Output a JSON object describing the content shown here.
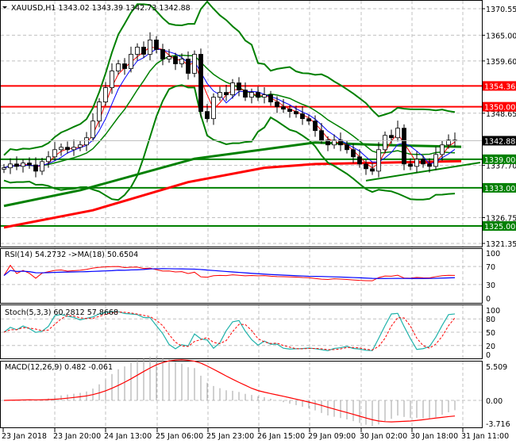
{
  "header": {
    "symbol": "XAUUSD,H1",
    "open": "1343.02",
    "high": "1343.39",
    "low": "1342.73",
    "close": "1342.88"
  },
  "indicators": {
    "rsi": {
      "label": "RSI(14) 54.2732  ->MA(18) 50.6504",
      "ticks": [
        "100",
        "70",
        "30",
        "0"
      ]
    },
    "stoch": {
      "label": "Stoch(5,3,3) 60.2812 57.8668",
      "ticks": [
        "100",
        "80",
        "50",
        "20",
        "0"
      ]
    },
    "macd": {
      "label": "MACD(12,26,9) 0.482 -0.061",
      "ticks": [
        "5.509",
        "0.00",
        "-3.716"
      ]
    }
  },
  "colors": {
    "bull": "#000000",
    "bear": "#000000",
    "up_body": "#ffffff",
    "down_body": "#000000",
    "red": "#ff0000",
    "green": "#008000",
    "blue": "#0000ff",
    "teal": "#20b2aa",
    "grid": "#c0c0c0"
  },
  "chart_data": {
    "type": "candlestick",
    "title": "XAUUSD,H1",
    "ylim": [
      1321.35,
      1370.55
    ],
    "price_ticks": [
      "1370.55",
      "1365.00",
      "1359.60",
      "1348.65",
      "1337.70",
      "1326.75",
      "1321.35"
    ],
    "levels": [
      {
        "price": 1354.36,
        "label": "1354.36",
        "color": "#ff0000"
      },
      {
        "price": 1350.0,
        "label": "1350.00",
        "color": "#ff0000"
      },
      {
        "price": 1339.0,
        "label": "1339.00",
        "color": "#008000"
      },
      {
        "price": 1333.0,
        "label": "1333.00",
        "color": "#008000"
      },
      {
        "price": 1325.0,
        "label": "1325.00",
        "color": "#008000"
      }
    ],
    "current_price": {
      "price": 1342.88,
      "label": "1342.88"
    },
    "x_labels": [
      "23 Jan 2018",
      "23 Jan 20:00",
      "24 Jan 13:00",
      "25 Jan 06:00",
      "25 Jan 23:00",
      "26 Jan 15:00",
      "29 Jan 09:00",
      "30 Jan 02:00",
      "30 Jan 18:00",
      "31 Jan 11:00"
    ],
    "closes": [
      1337.2,
      1338,
      1337.5,
      1338.2,
      1337.8,
      1336.5,
      1338.5,
      1339.5,
      1341,
      1341.5,
      1341,
      1341.5,
      1342,
      1343.5,
      1347,
      1351,
      1354,
      1357.5,
      1359,
      1358,
      1361,
      1362.5,
      1361,
      1364,
      1362,
      1360,
      1360.5,
      1359,
      1360,
      1357,
      1361,
      1349,
      1347.5,
      1352,
      1353,
      1352.5,
      1355,
      1353.5,
      1352,
      1353,
      1352,
      1352.5,
      1351,
      1350,
      1349.5,
      1349,
      1348.5,
      1347.5,
      1347,
      1345,
      1343,
      1342,
      1343,
      1342,
      1341,
      1339.5,
      1338,
      1337,
      1336.5,
      1341,
      1344,
      1343.5,
      1345.5,
      1338,
      1337.5,
      1339,
      1338,
      1337.5,
      1340,
      1342,
      1343,
      1342.88
    ],
    "ma_slow": {
      "index": [
        0,
        14,
        29,
        41,
        49,
        72
      ],
      "values": [
        1324.7,
        1328.3,
        1334.2,
        1337.2,
        1338,
        1338.6
      ]
    },
    "ma_mid": {
      "index": [
        0,
        12,
        30,
        49,
        59,
        72
      ],
      "values": [
        1329.2,
        1332.5,
        1339.1,
        1342.5,
        1342,
        1341.6
      ]
    },
    "trendline": {
      "index": [
        57,
        75
      ],
      "values": [
        1334.5,
        1338.3
      ]
    }
  }
}
